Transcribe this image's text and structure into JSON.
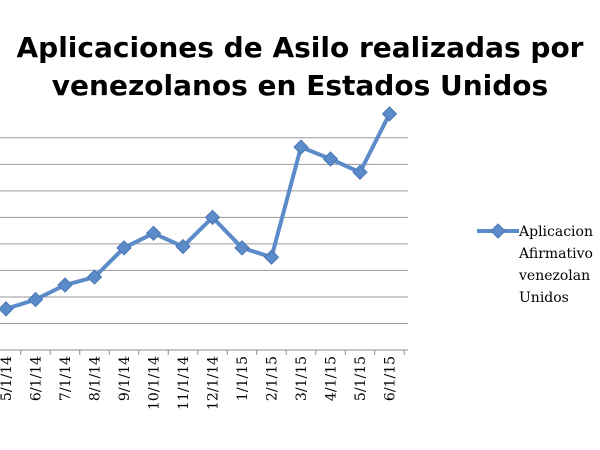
{
  "chart_data": {
    "type": "line",
    "title": "Aplicaciones de Asilo realizadas por venezolanos en Estados Unidos",
    "title_lines": [
      "Aplicaciones de Asilo realizadas por",
      "venezolanos en Estados Unidos"
    ],
    "xlabel": "",
    "ylabel": "",
    "categories": [
      "5/1/14",
      "6/1/14",
      "7/1/14",
      "8/1/14",
      "9/1/14",
      "10/1/14",
      "11/1/14",
      "12/1/14",
      "1/1/15",
      "2/1/15",
      "3/1/15",
      "4/1/15",
      "5/1/15",
      "6/1/15"
    ],
    "series": [
      {
        "name": "Aplicaciones Afirmativo venezolanos Unidos",
        "legend_lines": [
          "Aplicacion",
          "Afirmativo",
          "venezolan",
          "Unidos"
        ],
        "color": "#5b8bc9",
        "values": [
          0.55,
          0.9,
          1.45,
          1.75,
          2.85,
          3.4,
          2.9,
          4.0,
          2.85,
          2.5,
          6.65,
          6.2,
          5.7,
          7.9
        ]
      }
    ],
    "ylim": [
      -1,
      8.5
    ],
    "grid": true,
    "legend": "right"
  }
}
